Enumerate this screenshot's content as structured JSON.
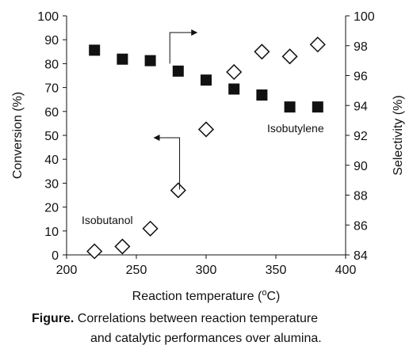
{
  "chart_data": {
    "type": "scatter",
    "xlabel": "Reaction temperature (oC)",
    "ylabel": "Conversion (%)",
    "ylabel_right": "Selectivity (%)",
    "xlim": [
      200,
      400
    ],
    "ylim": [
      0,
      100
    ],
    "ylim_right": [
      84,
      100
    ],
    "x_ticks": [
      200,
      250,
      300,
      350,
      400
    ],
    "y_ticks": [
      0,
      10,
      20,
      30,
      40,
      50,
      60,
      70,
      80,
      90,
      100
    ],
    "y_right_ticks": [
      84,
      86,
      88,
      90,
      92,
      94,
      96,
      98,
      100
    ],
    "grid": false,
    "series": [
      {
        "name": "Isobutanol",
        "axis": "left",
        "marker": "diamond-open",
        "x": [
          220,
          240,
          260,
          280,
          300,
          320,
          340,
          360,
          380
        ],
        "y": [
          1.5,
          3.5,
          11,
          27,
          52.5,
          76.5,
          85,
          83,
          88
        ]
      },
      {
        "name": "Isobutylene",
        "axis": "right",
        "marker": "square-filled",
        "x": [
          220,
          240,
          260,
          280,
          300,
          320,
          340,
          360,
          380
        ],
        "y": [
          97.7,
          97.1,
          97.0,
          96.3,
          95.7,
          95.1,
          94.7,
          93.9,
          93.9
        ]
      }
    ],
    "annotations": [
      {
        "text": "Isobutanol",
        "series": "Isobutanol",
        "arrow": "left"
      },
      {
        "text": "Isobutylene",
        "series": "Isobutylene",
        "arrow": "right"
      }
    ]
  },
  "caption": {
    "label": "Figure.",
    "line1": "Correlations between reaction temperature",
    "line2": "and catalytic performances over alumina."
  },
  "colors": {
    "ink": "#111111",
    "background": "#ffffff"
  }
}
